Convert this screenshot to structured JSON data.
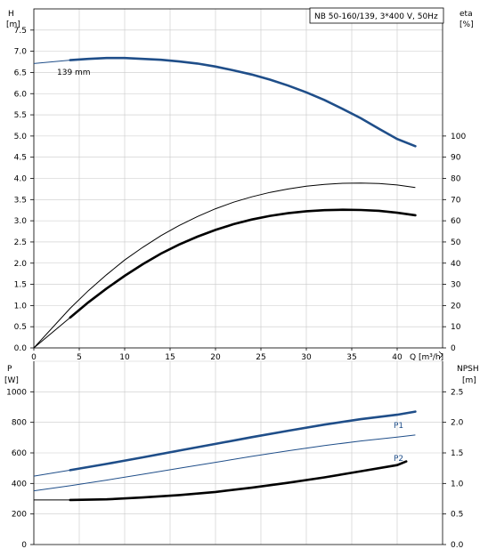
{
  "chart_data": [
    {
      "type": "line",
      "title": "NB 50-160/139, 3*400 V, 50Hz",
      "xlabel": "Q [m³/h]",
      "ylabel_left_line1": "H",
      "ylabel_left_line2": "[m]",
      "ylabel_right_line1": "eta",
      "ylabel_right_line2": "[%]",
      "xlim": [
        0,
        45
      ],
      "ylim_left": [
        0,
        8
      ],
      "ylim_right": [
        0,
        160
      ],
      "x_ticks": [
        "0",
        "5",
        "10",
        "15",
        "20",
        "25",
        "30",
        "35",
        "40"
      ],
      "y_ticks_left": [
        "0.0",
        "0.5",
        "1.0",
        "1.5",
        "2.0",
        "2.5",
        "3.0",
        "3.5",
        "4.0",
        "4.5",
        "5.0",
        "5.5",
        "6.0",
        "6.5",
        "7.0",
        "7.5"
      ],
      "y_ticks_right": [
        "0",
        "10",
        "20",
        "30",
        "40",
        "50",
        "60",
        "70",
        "80",
        "90",
        "100"
      ],
      "grid": true,
      "annotations": [
        {
          "text": "139 mm",
          "x": 4.2,
          "y": 6.9
        }
      ],
      "series": [
        {
          "curve": "head",
          "axis": "left",
          "color": "#1f4e89",
          "thin_points": [
            [
              0,
              6.71
            ],
            [
              4,
              6.79
            ]
          ],
          "thick_points": [
            [
              4,
              6.79
            ],
            [
              6,
              6.82
            ],
            [
              8,
              6.84
            ],
            [
              10,
              6.84
            ],
            [
              12,
              6.82
            ],
            [
              14,
              6.8
            ],
            [
              16,
              6.76
            ],
            [
              18,
              6.71
            ],
            [
              20,
              6.64
            ],
            [
              22,
              6.55
            ],
            [
              24,
              6.45
            ],
            [
              26,
              6.33
            ],
            [
              28,
              6.19
            ],
            [
              30,
              6.03
            ],
            [
              32,
              5.85
            ],
            [
              34,
              5.64
            ],
            [
              36,
              5.42
            ],
            [
              38,
              5.17
            ],
            [
              40,
              4.93
            ],
            [
              42,
              4.76
            ]
          ]
        },
        {
          "curve": "efficiency",
          "axis": "right",
          "color": "#000000",
          "thin_points": [
            [
              0,
              0
            ],
            [
              4,
              18.7
            ],
            [
              6,
              27
            ],
            [
              8,
              34.5
            ],
            [
              10,
              41.5
            ],
            [
              12,
              47.5
            ],
            [
              14,
              53
            ],
            [
              16,
              57.8
            ],
            [
              18,
              62
            ],
            [
              20,
              65.7
            ],
            [
              22,
              68.8
            ],
            [
              24,
              71.3
            ],
            [
              26,
              73.4
            ],
            [
              28,
              75
            ],
            [
              30,
              76.3
            ],
            [
              32,
              77.2
            ],
            [
              34,
              77.7
            ],
            [
              36,
              77.8
            ],
            [
              38,
              77.6
            ],
            [
              40,
              76.9
            ],
            [
              42,
              75.7
            ]
          ],
          "thick_points": []
        },
        {
          "curve": "efficiency-thick",
          "axis": "right",
          "color": "#000000",
          "thin_points": [
            [
              0,
              0
            ],
            [
              4,
              14.3
            ]
          ],
          "thick_points": [
            [
              4,
              14.3
            ],
            [
              6,
              21.5
            ],
            [
              8,
              28
            ],
            [
              10,
              34
            ],
            [
              12,
              39.5
            ],
            [
              14,
              44.5
            ],
            [
              16,
              48.8
            ],
            [
              18,
              52.5
            ],
            [
              20,
              55.7
            ],
            [
              22,
              58.4
            ],
            [
              24,
              60.6
            ],
            [
              26,
              62.3
            ],
            [
              28,
              63.6
            ],
            [
              30,
              64.5
            ],
            [
              32,
              65
            ],
            [
              34,
              65.2
            ],
            [
              36,
              65.1
            ],
            [
              38,
              64.7
            ],
            [
              40,
              63.8
            ],
            [
              42,
              62.6
            ]
          ]
        }
      ]
    },
    {
      "type": "line",
      "title": "",
      "xlabel": "",
      "ylabel_left_line1": "P",
      "ylabel_left_line2": "[W]",
      "ylabel_right_line1": "NPSH",
      "ylabel_right_line2": "[m]",
      "xlim": [
        0,
        45
      ],
      "ylim_left": [
        0,
        1200
      ],
      "ylim_right": [
        0,
        3
      ],
      "y_ticks_left": [
        "0",
        "200",
        "400",
        "600",
        "800",
        "1000"
      ],
      "y_ticks_right": [
        "0.0",
        "0.5",
        "1.0",
        "1.5",
        "2.0",
        "2.5"
      ],
      "grid": true,
      "series": [
        {
          "name": "P1",
          "axis": "left",
          "color": "#1f4e89",
          "thin_points": [
            [
              0,
              448
            ],
            [
              4,
              487
            ]
          ],
          "thick_points": [
            [
              4,
              487
            ],
            [
              8,
              528
            ],
            [
              12,
              571
            ],
            [
              16,
              615
            ],
            [
              20,
              659
            ],
            [
              24,
              703
            ],
            [
              28,
              745
            ],
            [
              32,
              785
            ],
            [
              36,
              821
            ],
            [
              40,
              850
            ],
            [
              42,
              870
            ]
          ]
        },
        {
          "name": "P2",
          "axis": "left",
          "color": "#1f4e89",
          "thin_points": [
            [
              0,
              352
            ],
            [
              4,
              385
            ],
            [
              8,
              422
            ],
            [
              12,
              460
            ],
            [
              16,
              499
            ],
            [
              20,
              538
            ],
            [
              24,
              577
            ],
            [
              28,
              614
            ],
            [
              32,
              648
            ],
            [
              36,
              678
            ],
            [
              40,
              703
            ],
            [
              42,
              717
            ]
          ],
          "thick_points": []
        },
        {
          "name": "NPSH",
          "axis": "right",
          "color": "#000000",
          "thin_points": [
            [
              0,
              0.73
            ],
            [
              4,
              0.73
            ]
          ],
          "thick_points": [
            [
              4,
              0.73
            ],
            [
              8,
              0.74
            ],
            [
              12,
              0.77
            ],
            [
              16,
              0.81
            ],
            [
              20,
              0.86
            ],
            [
              24,
              0.93
            ],
            [
              28,
              1.01
            ],
            [
              32,
              1.1
            ],
            [
              36,
              1.2
            ],
            [
              40,
              1.3
            ],
            [
              41,
              1.36
            ]
          ]
        }
      ]
    }
  ]
}
